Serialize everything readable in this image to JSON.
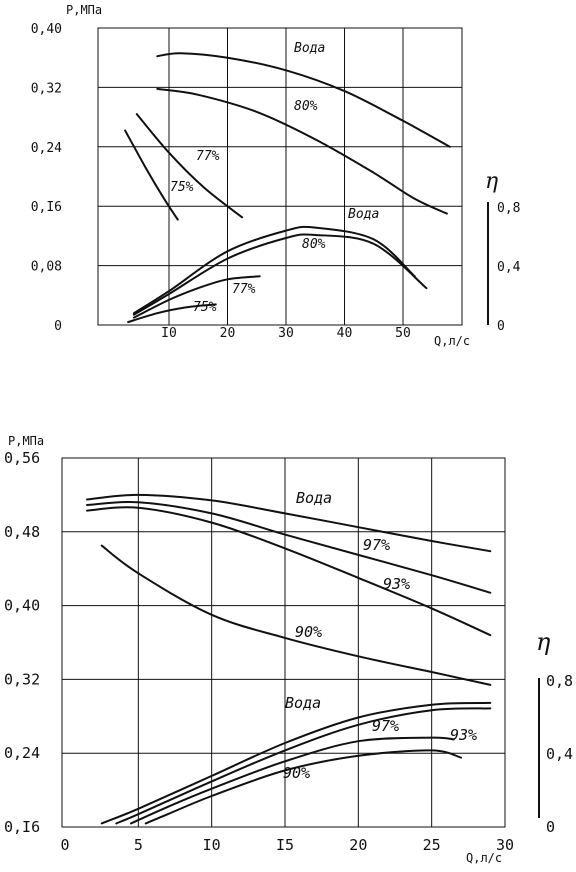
{
  "chart_data": [
    {
      "type": "line",
      "title": "",
      "ylabel": "P,МПа",
      "xlabel": "Q,л/с",
      "y2label": "η",
      "xlim": [
        0,
        60
      ],
      "ylim": [
        0,
        0.4
      ],
      "x_ticks": [
        "I0",
        "20",
        "30",
        "40",
        "50"
      ],
      "x_tick_values": [
        10,
        20,
        30,
        40,
        50
      ],
      "y_ticks": [
        "0",
        "0,08",
        "0,I6",
        "0,24",
        "0,32",
        "0,40"
      ],
      "y_tick_values": [
        0,
        0.08,
        0.16,
        0.24,
        0.32,
        0.4
      ],
      "y2_ticks": [
        "0",
        "0,4",
        "0,8"
      ],
      "y2_tick_values": [
        0,
        0.4,
        0.8
      ],
      "grid": true,
      "series": [
        {
          "name": "Вода",
          "axis": "P",
          "x": [
            8,
            12,
            20,
            30,
            40,
            50,
            58
          ],
          "y": [
            0.362,
            0.366,
            0.36,
            0.343,
            0.315,
            0.275,
            0.24
          ]
        },
        {
          "name": "80%",
          "axis": "P",
          "x": [
            8,
            15,
            25,
            35,
            45,
            52,
            57.5
          ],
          "y": [
            0.318,
            0.31,
            0.287,
            0.25,
            0.205,
            0.17,
            0.15
          ]
        },
        {
          "name": "77%",
          "axis": "P",
          "x": [
            4.5,
            10,
            16,
            22.5
          ],
          "y": [
            0.284,
            0.232,
            0.185,
            0.145
          ]
        },
        {
          "name": "75%",
          "axis": "P",
          "x": [
            2.5,
            6,
            9,
            11.5
          ],
          "y": [
            0.262,
            0.212,
            0.172,
            0.142
          ]
        },
        {
          "name": "Вода",
          "axis": "η",
          "x": [
            4,
            10,
            20,
            30,
            35,
            45,
            52
          ],
          "y": [
            0.08,
            0.23,
            0.5,
            0.64,
            0.66,
            0.58,
            0.33
          ]
        },
        {
          "name": "80%",
          "axis": "η",
          "x": [
            4,
            10,
            20,
            30,
            35,
            45,
            54
          ],
          "y": [
            0.07,
            0.21,
            0.45,
            0.59,
            0.61,
            0.55,
            0.25
          ]
        },
        {
          "name": "77%",
          "axis": "η",
          "x": [
            4,
            10,
            15,
            20,
            25.5
          ],
          "y": [
            0.05,
            0.17,
            0.25,
            0.31,
            0.33
          ]
        },
        {
          "name": "75%",
          "axis": "η",
          "x": [
            3,
            8,
            13,
            18
          ],
          "y": [
            0.02,
            0.08,
            0.12,
            0.14
          ]
        }
      ]
    },
    {
      "type": "line",
      "title": "",
      "ylabel": "P,МПа",
      "xlabel": "Q,л/с",
      "y2label": "η",
      "xlim": [
        0,
        30
      ],
      "ylim": [
        0.16,
        0.56
      ],
      "x_ticks": [
        "0",
        "5",
        "I0",
        "I5",
        "20",
        "25",
        "30"
      ],
      "x_tick_values": [
        0,
        5,
        10,
        15,
        20,
        25,
        30
      ],
      "y_ticks": [
        "0,I6",
        "0,24",
        "0,32",
        "0,40",
        "0,48",
        "0,56"
      ],
      "y_tick_values": [
        0.16,
        0.24,
        0.32,
        0.4,
        0.48,
        0.56
      ],
      "y2_ticks": [
        "0",
        "0,4",
        "0,8"
      ],
      "y2_tick_values": [
        0,
        0.4,
        0.8
      ],
      "grid": true,
      "series": [
        {
          "name": "Вода",
          "axis": "P",
          "x": [
            1.5,
            5,
            10,
            15,
            20,
            25,
            29
          ],
          "y": [
            0.515,
            0.52,
            0.514,
            0.5,
            0.485,
            0.47,
            0.459
          ]
        },
        {
          "name": "97%",
          "axis": "P",
          "x": [
            1.5,
            5,
            10,
            15,
            20,
            25,
            29
          ],
          "y": [
            0.509,
            0.512,
            0.5,
            0.477,
            0.455,
            0.433,
            0.414
          ]
        },
        {
          "name": "93%",
          "axis": "P",
          "x": [
            1.5,
            5,
            10,
            15,
            20,
            25,
            29
          ],
          "y": [
            0.503,
            0.506,
            0.49,
            0.462,
            0.43,
            0.397,
            0.368
          ]
        },
        {
          "name": "90%",
          "axis": "P",
          "x": [
            2.5,
            5,
            10,
            15,
            20,
            25,
            29
          ],
          "y": [
            0.465,
            0.435,
            0.39,
            0.365,
            0.345,
            0.328,
            0.314
          ]
        },
        {
          "name": "Вода",
          "axis": "η",
          "x": [
            2.5,
            5,
            10,
            15,
            20,
            25,
            29
          ],
          "y": [
            0.02,
            0.1,
            0.28,
            0.46,
            0.6,
            0.67,
            0.68
          ]
        },
        {
          "name": "97%",
          "axis": "η",
          "x": [
            3.5,
            5,
            10,
            15,
            20,
            25,
            29
          ],
          "y": [
            0.02,
            0.07,
            0.25,
            0.42,
            0.56,
            0.64,
            0.65
          ]
        },
        {
          "name": "93%",
          "axis": "η",
          "x": [
            4.5,
            7,
            10,
            15,
            20,
            25,
            26.5
          ],
          "y": [
            0.02,
            0.11,
            0.21,
            0.36,
            0.47,
            0.49,
            0.48
          ]
        },
        {
          "name": "90%",
          "axis": "η",
          "x": [
            5.5,
            7,
            10,
            15,
            20,
            25,
            27
          ],
          "y": [
            0.02,
            0.07,
            0.17,
            0.31,
            0.39,
            0.42,
            0.38
          ]
        }
      ]
    }
  ]
}
